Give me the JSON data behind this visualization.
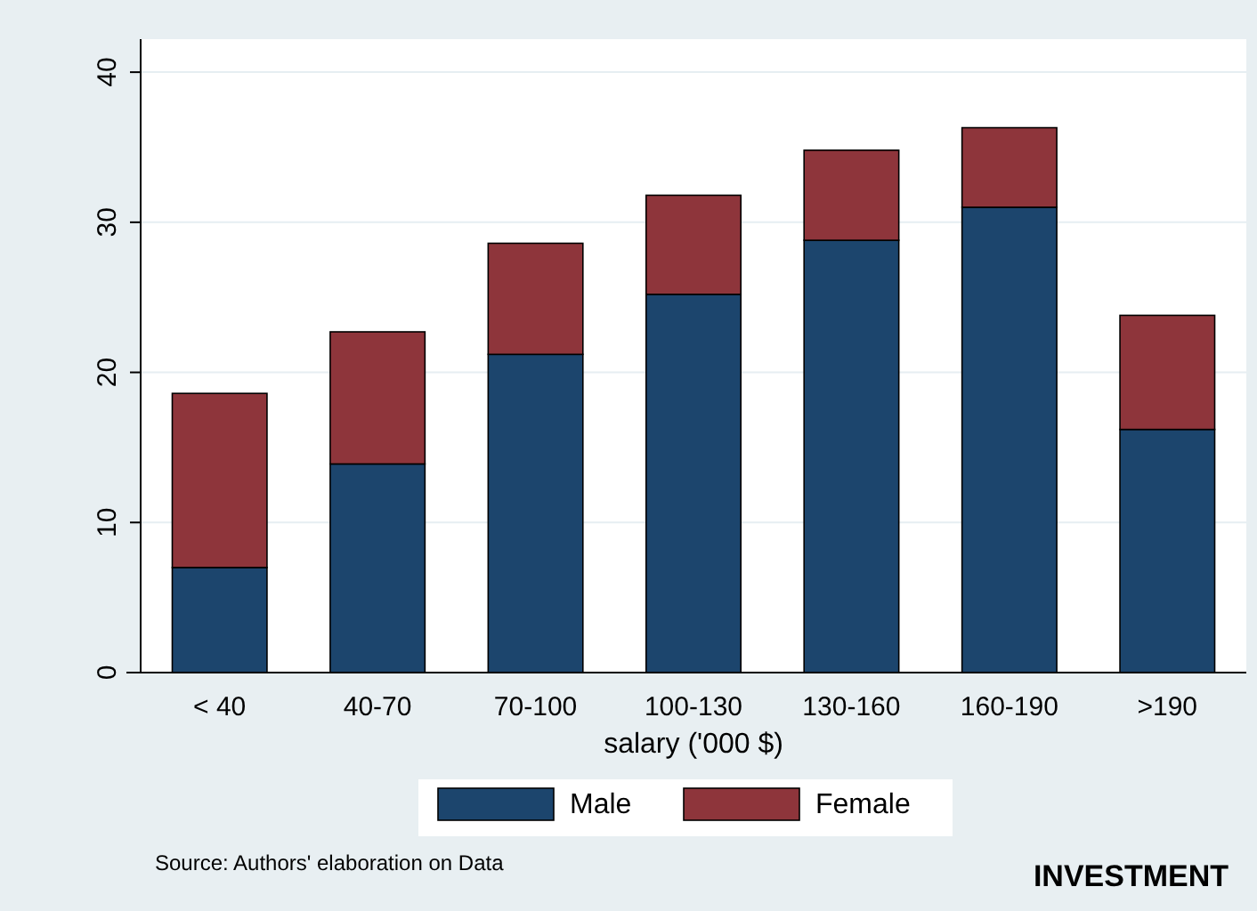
{
  "chart_data": {
    "type": "bar",
    "stacked": true,
    "xlabel": "salary ('000 $)",
    "categories": [
      "< 40",
      "40-70",
      "70-100",
      "100-130",
      "130-160",
      "160-190",
      ">190"
    ],
    "series": [
      {
        "name": "Male",
        "color": "#1c456d",
        "values": [
          7.0,
          13.9,
          21.2,
          25.2,
          28.8,
          31.0,
          16.2
        ]
      },
      {
        "name": "Female",
        "color": "#8e353b",
        "values": [
          11.6,
          8.8,
          7.4,
          6.6,
          6.0,
          5.3,
          7.6
        ]
      }
    ],
    "ylim": [
      0,
      42.2
    ],
    "yticks": [
      0,
      10,
      20,
      30,
      40
    ],
    "grid": "y",
    "legend": "bottom",
    "annotations": [
      "Source: Authors' elaboration on Data",
      "INVESTMENT"
    ]
  }
}
